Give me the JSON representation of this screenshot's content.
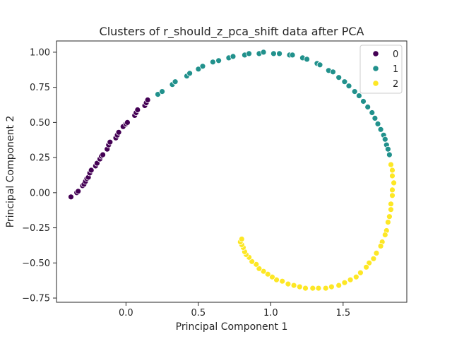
{
  "chart_data": {
    "type": "scatter",
    "title": "Clusters of r_should_z_pca_shift data after PCA",
    "xlabel": "Principal Component 1",
    "ylabel": "Principal Component 2",
    "xlim": [
      -0.48,
      1.94
    ],
    "ylim": [
      -0.78,
      1.08
    ],
    "xticks": [
      "0.0",
      "0.5",
      "1.0",
      "1.5"
    ],
    "yticks": [
      "−0.75",
      "−0.50",
      "−0.25",
      "0.00",
      "0.25",
      "0.50",
      "0.75",
      "1.00"
    ],
    "grid": false,
    "legend": {
      "placement": "top-right"
    },
    "series": [
      {
        "name": "0",
        "color": "#440154",
        "points": [
          [
            -0.38,
            -0.03
          ],
          [
            -0.34,
            0.0
          ],
          [
            -0.33,
            0.01
          ],
          [
            -0.3,
            0.05
          ],
          [
            -0.29,
            0.06
          ],
          [
            -0.28,
            0.08
          ],
          [
            -0.27,
            0.1
          ],
          [
            -0.26,
            0.11
          ],
          [
            -0.25,
            0.14
          ],
          [
            -0.24,
            0.16
          ],
          [
            -0.21,
            0.19
          ],
          [
            -0.2,
            0.21
          ],
          [
            -0.18,
            0.24
          ],
          [
            -0.17,
            0.26
          ],
          [
            -0.16,
            0.27
          ],
          [
            -0.13,
            0.31
          ],
          [
            -0.12,
            0.34
          ],
          [
            -0.11,
            0.36
          ],
          [
            -0.07,
            0.39
          ],
          [
            -0.06,
            0.41
          ],
          [
            -0.05,
            0.43
          ],
          [
            -0.02,
            0.47
          ],
          [
            0.0,
            0.49
          ],
          [
            0.01,
            0.5
          ],
          [
            0.06,
            0.55
          ],
          [
            0.07,
            0.57
          ],
          [
            0.08,
            0.59
          ],
          [
            0.13,
            0.62
          ],
          [
            0.14,
            0.64
          ],
          [
            0.15,
            0.66
          ]
        ]
      },
      {
        "name": "1",
        "color": "#21918c",
        "points": [
          [
            0.22,
            0.7
          ],
          [
            0.25,
            0.72
          ],
          [
            0.32,
            0.77
          ],
          [
            0.34,
            0.79
          ],
          [
            0.42,
            0.83
          ],
          [
            0.44,
            0.85
          ],
          [
            0.5,
            0.88
          ],
          [
            0.53,
            0.9
          ],
          [
            0.6,
            0.93
          ],
          [
            0.64,
            0.94
          ],
          [
            0.71,
            0.96
          ],
          [
            0.74,
            0.97
          ],
          [
            0.82,
            0.98
          ],
          [
            0.85,
            0.99
          ],
          [
            0.92,
            0.99
          ],
          [
            0.95,
            1.0
          ],
          [
            1.02,
            0.99
          ],
          [
            1.06,
            0.99
          ],
          [
            1.13,
            0.98
          ],
          [
            1.15,
            0.98
          ],
          [
            1.22,
            0.96
          ],
          [
            1.25,
            0.95
          ],
          [
            1.32,
            0.92
          ],
          [
            1.34,
            0.91
          ],
          [
            1.4,
            0.87
          ],
          [
            1.43,
            0.86
          ],
          [
            1.47,
            0.82
          ],
          [
            1.51,
            0.79
          ],
          [
            1.54,
            0.76
          ],
          [
            1.58,
            0.72
          ],
          [
            1.61,
            0.69
          ],
          [
            1.64,
            0.65
          ],
          [
            1.67,
            0.61
          ],
          [
            1.7,
            0.57
          ],
          [
            1.72,
            0.53
          ],
          [
            1.74,
            0.49
          ],
          [
            1.76,
            0.45
          ],
          [
            1.78,
            0.41
          ],
          [
            1.79,
            0.38
          ],
          [
            1.8,
            0.34
          ],
          [
            1.81,
            0.31
          ],
          [
            1.82,
            0.27
          ]
        ]
      },
      {
        "name": "2",
        "color": "#fde725",
        "points": [
          [
            1.83,
            0.2
          ],
          [
            1.84,
            0.16
          ],
          [
            1.84,
            0.12
          ],
          [
            1.85,
            0.07
          ],
          [
            1.84,
            0.02
          ],
          [
            1.84,
            -0.02
          ],
          [
            1.83,
            -0.08
          ],
          [
            1.83,
            -0.12
          ],
          [
            1.82,
            -0.17
          ],
          [
            1.81,
            -0.21
          ],
          [
            1.8,
            -0.27
          ],
          [
            1.79,
            -0.3
          ],
          [
            1.77,
            -0.35
          ],
          [
            1.76,
            -0.38
          ],
          [
            1.73,
            -0.43
          ],
          [
            1.71,
            -0.47
          ],
          [
            1.68,
            -0.5
          ],
          [
            1.66,
            -0.53
          ],
          [
            1.62,
            -0.57
          ],
          [
            1.59,
            -0.6
          ],
          [
            1.55,
            -0.62
          ],
          [
            1.51,
            -0.64
          ],
          [
            1.47,
            -0.66
          ],
          [
            1.42,
            -0.67
          ],
          [
            1.38,
            -0.68
          ],
          [
            1.33,
            -0.68
          ],
          [
            1.29,
            -0.68
          ],
          [
            1.24,
            -0.68
          ],
          [
            1.2,
            -0.67
          ],
          [
            1.16,
            -0.66
          ],
          [
            1.12,
            -0.65
          ],
          [
            1.08,
            -0.63
          ],
          [
            1.04,
            -0.62
          ],
          [
            1.01,
            -0.6
          ],
          [
            0.98,
            -0.58
          ],
          [
            0.95,
            -0.56
          ],
          [
            0.92,
            -0.54
          ],
          [
            0.9,
            -0.51
          ],
          [
            0.87,
            -0.49
          ],
          [
            0.85,
            -0.46
          ],
          [
            0.83,
            -0.44
          ],
          [
            0.82,
            -0.42
          ],
          [
            0.81,
            -0.39
          ],
          [
            0.8,
            -0.37
          ],
          [
            0.79,
            -0.35
          ],
          [
            0.8,
            -0.33
          ]
        ]
      }
    ]
  }
}
